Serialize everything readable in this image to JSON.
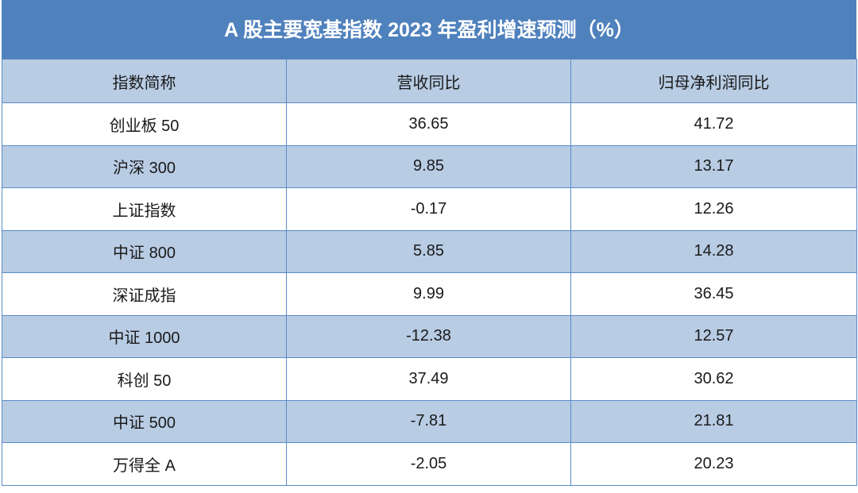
{
  "table": {
    "title": "A 股主要宽基指数 2023 年盈利增速预测（%）",
    "header": [
      "指数简称",
      "营收同比",
      "归母净利润同比"
    ],
    "rows": [
      [
        "创业板 50",
        "36.65",
        "41.72"
      ],
      [
        "沪深 300",
        "9.85",
        "13.17"
      ],
      [
        "上证指数",
        "-0.17",
        "12.26"
      ],
      [
        "中证 800",
        "5.85",
        "14.28"
      ],
      [
        "深证成指",
        "9.99",
        "36.45"
      ],
      [
        "中证 1000",
        "-12.38",
        "12.57"
      ],
      [
        "科创 50",
        "37.49",
        "30.62"
      ],
      [
        "中证 500",
        "-7.81",
        "21.81"
      ],
      [
        "万得全 A",
        "-2.05",
        "20.23"
      ]
    ]
  }
}
